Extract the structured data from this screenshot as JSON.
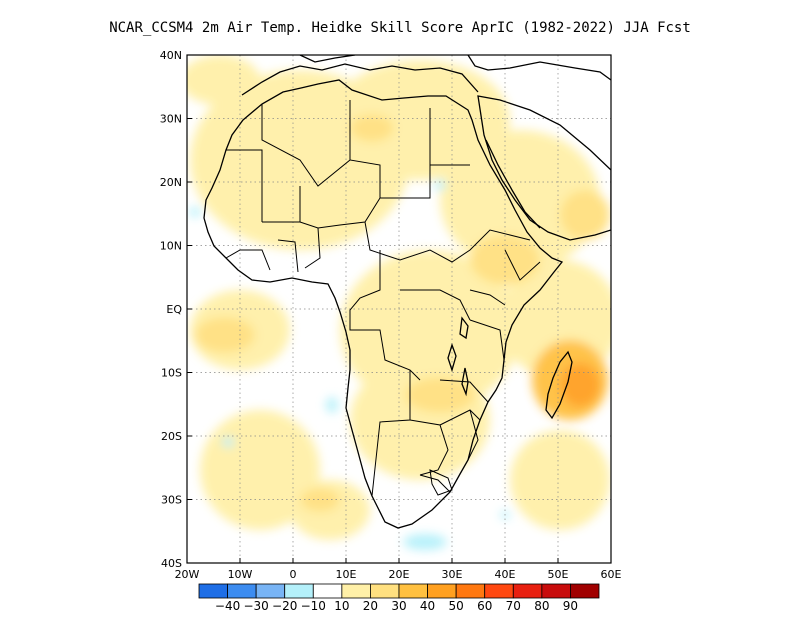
{
  "title": "NCAR_CCSM4  2m Air Temp. Heidke Skill Score AprIC (1982-2022) JJA Fcst",
  "map": {
    "lon_range": [
      -20,
      60
    ],
    "lat_range": [
      -40,
      40
    ],
    "lat_ticks": [
      {
        "value": 40,
        "label": "40N"
      },
      {
        "value": 30,
        "label": "30N"
      },
      {
        "value": 20,
        "label": "20N"
      },
      {
        "value": 10,
        "label": "10N"
      },
      {
        "value": 0,
        "label": "EQ"
      },
      {
        "value": -10,
        "label": "10S"
      },
      {
        "value": -20,
        "label": "20S"
      },
      {
        "value": -30,
        "label": "30S"
      },
      {
        "value": -40,
        "label": "40S"
      }
    ],
    "lon_ticks": [
      {
        "value": -20,
        "label": "20W"
      },
      {
        "value": -10,
        "label": "10W"
      },
      {
        "value": 0,
        "label": "0"
      },
      {
        "value": 10,
        "label": "10E"
      },
      {
        "value": 20,
        "label": "20E"
      },
      {
        "value": 30,
        "label": "30E"
      },
      {
        "value": 40,
        "label": "40E"
      },
      {
        "value": 50,
        "label": "50E"
      },
      {
        "value": 60,
        "label": "60E"
      }
    ],
    "grid": "dotted"
  },
  "colorbar": {
    "colors": [
      "#1e6ee6",
      "#3c8cf0",
      "#78b4f5",
      "#b4f0fa",
      "#ffffff",
      "#fff0a8",
      "#ffe080",
      "#ffc040",
      "#ffa020",
      "#ff7810",
      "#ff4810",
      "#e82010",
      "#c80c0c",
      "#a00000"
    ],
    "labels": [
      "-40",
      "-30",
      "-20",
      "-10",
      "10",
      "20",
      "30",
      "40",
      "50",
      "60",
      "70",
      "80",
      "90"
    ]
  }
}
